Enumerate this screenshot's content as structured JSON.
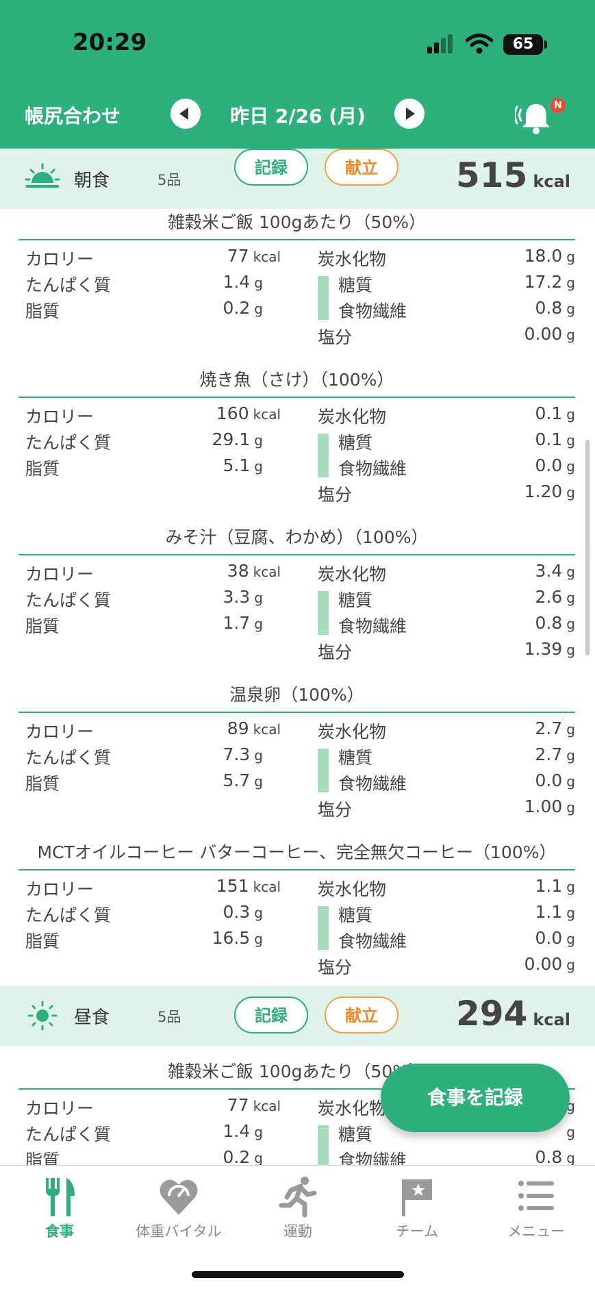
{
  "status_bar": {
    "time": "20:29",
    "battery": "65"
  },
  "header": {
    "title": "帳尻合わせ",
    "date": "昨日 2/26 (月)",
    "badge": "N"
  },
  "meals": [
    {
      "name": "朝食",
      "count": "5品",
      "record_label": "記録",
      "menu_label": "献立",
      "kcal": "515",
      "kcal_unit": "kcal",
      "foods": [
        {
          "title": "雑穀米ご飯 100gあたり（50%）",
          "kcal": "77",
          "protein": "1.4",
          "fat": "0.2",
          "carb": "18.0",
          "sugar": "17.2",
          "fiber": "0.8",
          "salt": "0.00"
        },
        {
          "title": "焼き魚（さけ）（100%）",
          "kcal": "160",
          "protein": "29.1",
          "fat": "5.1",
          "carb": "0.1",
          "sugar": "0.1",
          "fiber": "0.0",
          "salt": "1.20"
        },
        {
          "title": "みそ汁（豆腐、わかめ）（100%）",
          "kcal": "38",
          "protein": "3.3",
          "fat": "1.7",
          "carb": "3.4",
          "sugar": "2.6",
          "fiber": "0.8",
          "salt": "1.39"
        },
        {
          "title": "温泉卵（100%）",
          "kcal": "89",
          "protein": "7.3",
          "fat": "5.7",
          "carb": "2.7",
          "sugar": "2.7",
          "fiber": "0.0",
          "salt": "1.00"
        },
        {
          "title": "MCTオイルコーヒー バターコーヒー、完全無欠コーヒー（100%）",
          "kcal": "151",
          "protein": "0.3",
          "fat": "16.5",
          "carb": "1.1",
          "sugar": "1.1",
          "fiber": "0.0",
          "salt": "0.00"
        }
      ]
    },
    {
      "name": "昼食",
      "count": "5品",
      "record_label": "記録",
      "menu_label": "献立",
      "kcal": "294",
      "kcal_unit": "kcal",
      "foods": [
        {
          "title": "雑穀米ご飯 100gあたり（50%）",
          "kcal": "77",
          "protein": "1.4",
          "fat": "0.2",
          "carb": "",
          "sugar": "",
          "fiber": "0.8",
          "salt": ""
        }
      ]
    }
  ],
  "labels": {
    "calorie": "カロリー",
    "protein": "たんぱく質",
    "fat": "脂質",
    "carb": "炭水化物",
    "sugar": "糖質",
    "fiber": "食物繊維",
    "salt": "塩分",
    "kcal_unit": "kcal",
    "g_unit": "g"
  },
  "fab_label": "食事を記録",
  "tabs": [
    {
      "label": "食事",
      "icon": "fork-knife-icon"
    },
    {
      "label": "体重バイタル",
      "icon": "scale-heart-icon"
    },
    {
      "label": "運動",
      "icon": "runner-icon"
    },
    {
      "label": "チーム",
      "icon": "flag-icon"
    },
    {
      "label": "メニュー",
      "icon": "menu-list-icon"
    }
  ],
  "colors": {
    "accent": "#2eb07c",
    "orange": "#ef8a2a",
    "meal_header_bg": "#dff3ea"
  }
}
